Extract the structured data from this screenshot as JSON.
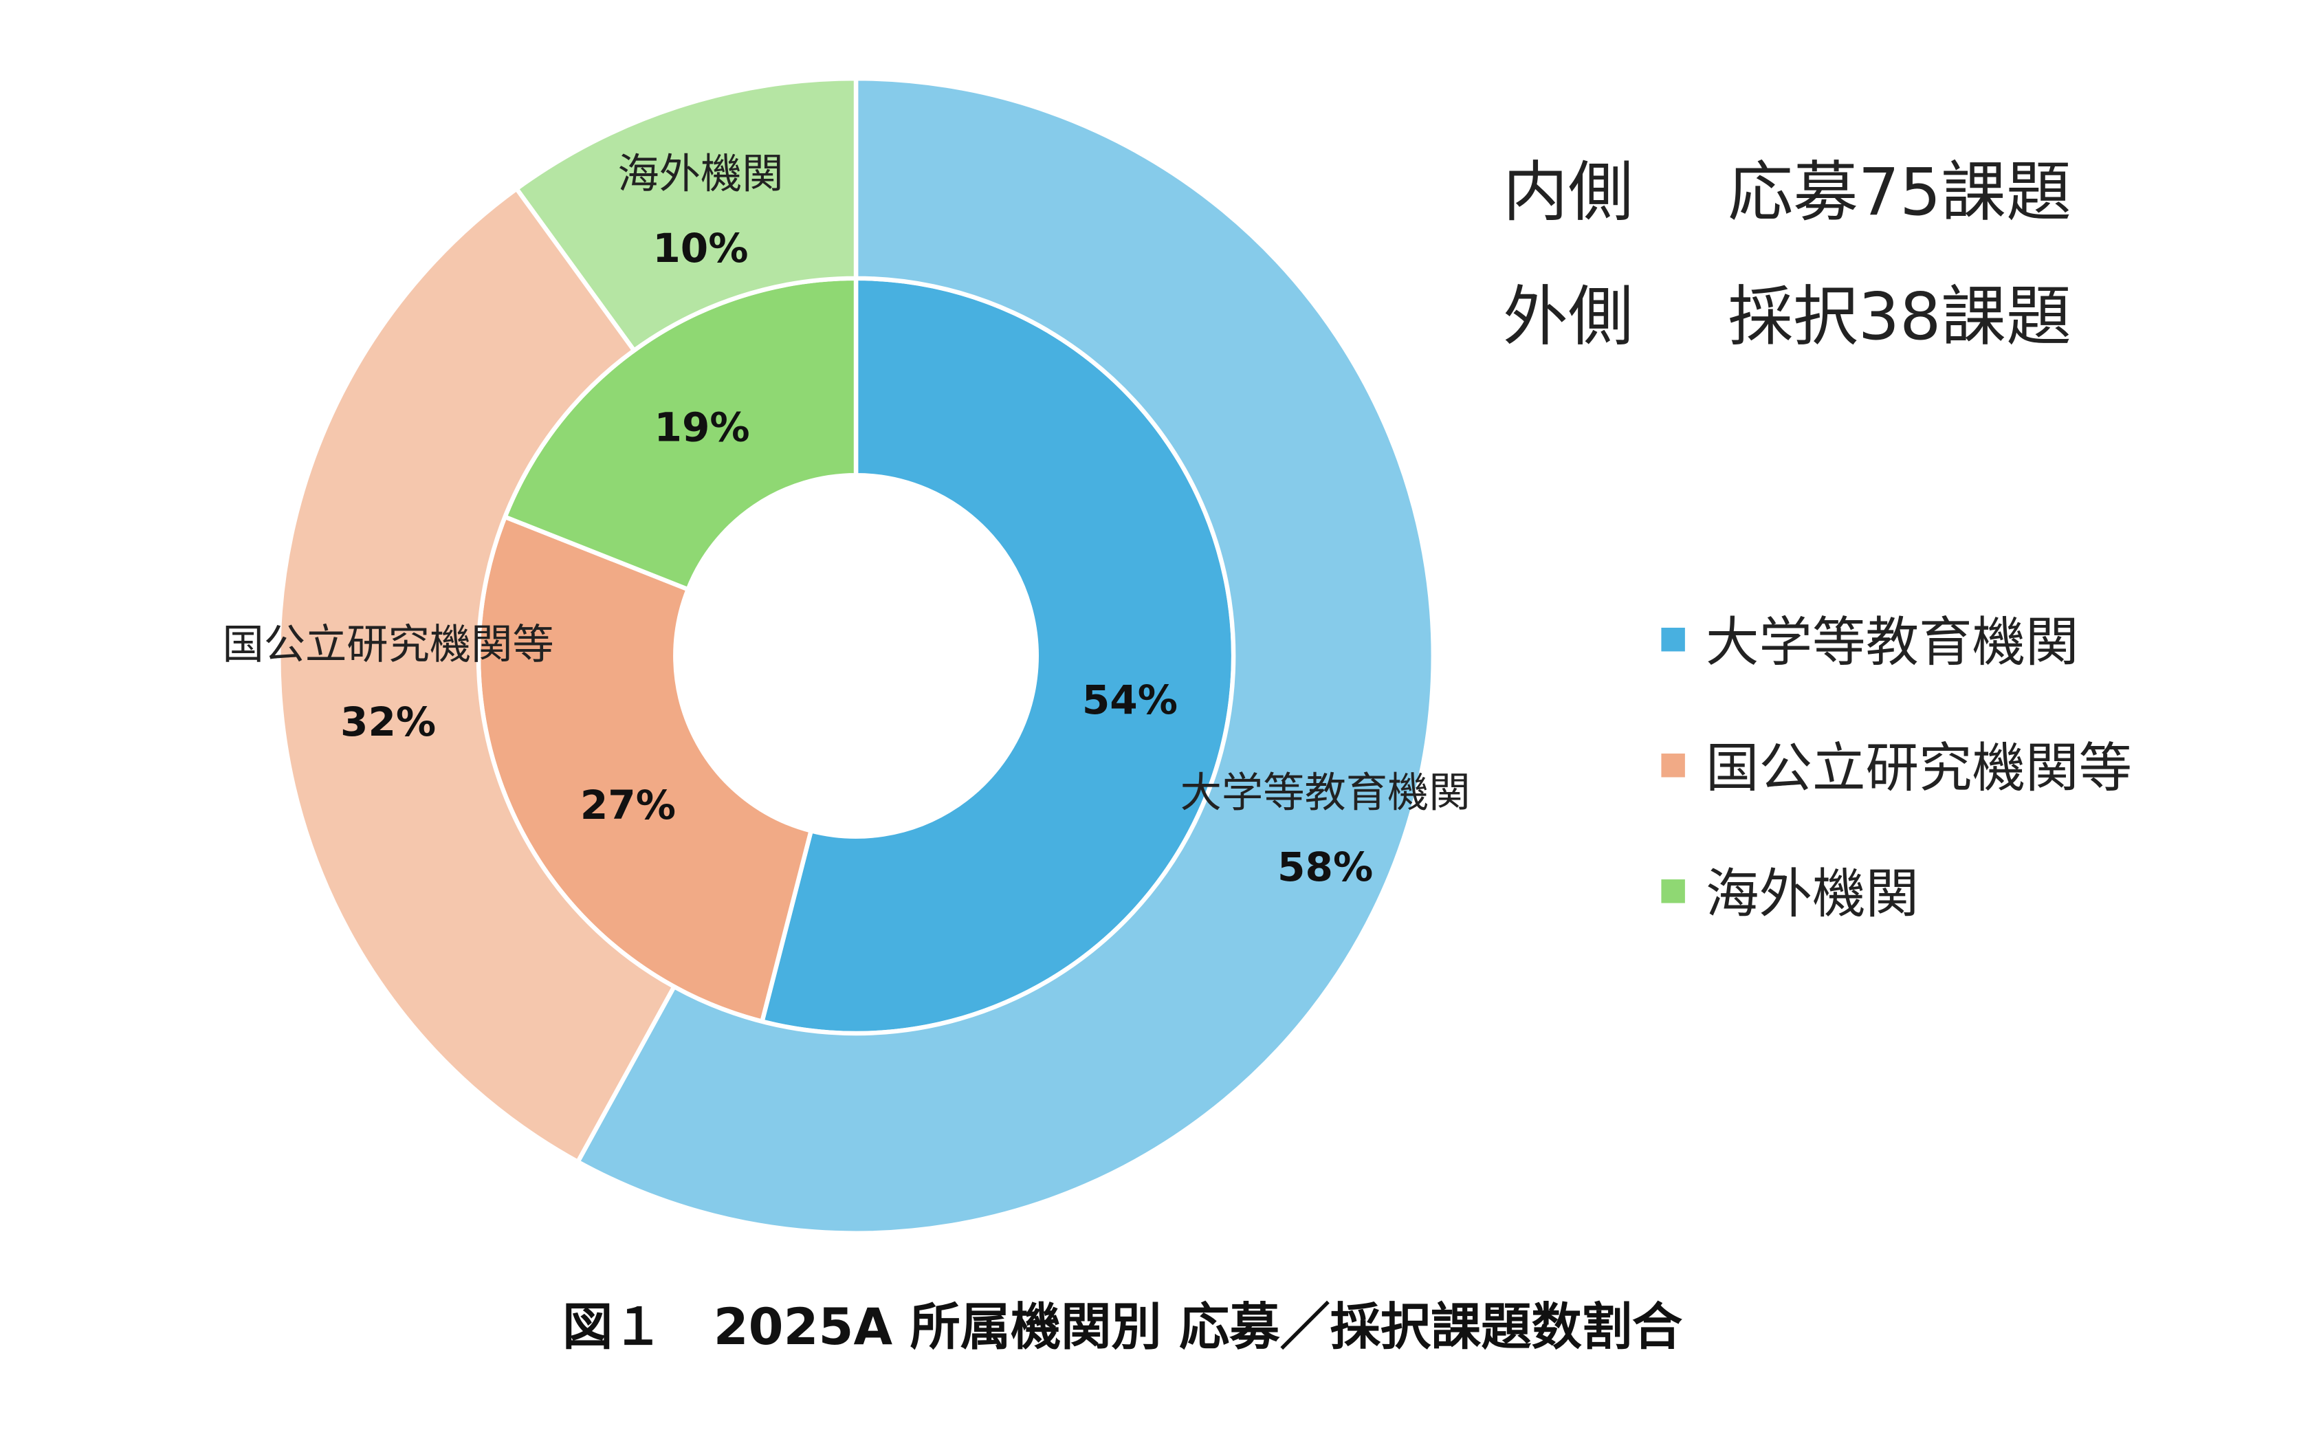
{
  "chart_data": {
    "type": "pie",
    "subtype": "double-donut",
    "title": "図１　2025A 所属機関別 応募／採択課題数割合",
    "categories": [
      "大学等教育機関",
      "国公立研究機関等",
      "海外機関"
    ],
    "colors_inner": [
      "#48b0e0",
      "#f1aa86",
      "#8fd873"
    ],
    "colors_outer": [
      "#86cbea",
      "#f5c7ad",
      "#b5e5a3"
    ],
    "series": [
      {
        "name": "応募",
        "ring": "inner",
        "values": [
          54,
          27,
          19
        ],
        "labels": [
          "54%",
          "27%",
          "19%"
        ]
      },
      {
        "name": "採択",
        "ring": "outer",
        "values": [
          58,
          32,
          10
        ],
        "labels": [
          "58%",
          "32%",
          "10%"
        ]
      }
    ],
    "notes": [
      {
        "ring": "内側",
        "text": "応募75課題"
      },
      {
        "ring": "外側",
        "text": "採択38課題"
      }
    ],
    "legend": {
      "placement": "right",
      "entries": [
        "大学等教育機関",
        "国公立研究機関等",
        "海外機関"
      ]
    }
  }
}
